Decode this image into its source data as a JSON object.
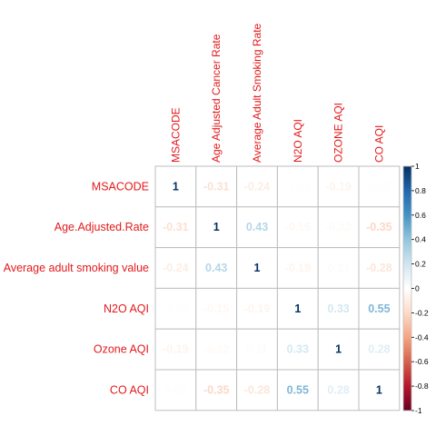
{
  "chart_data": {
    "type": "heatmap",
    "variant": "correlation-matrix",
    "row_labels": [
      "MSACODE",
      "Age.Adjusted.Rate",
      "Average adult smoking value",
      "N2O AQI",
      "Ozone AQI",
      "CO AQI"
    ],
    "col_labels": [
      "MSACODE",
      "Age Adjusted Cancer Rate",
      "Average Adult Smoking Rate",
      "N2O AQI",
      "OZONE AQI",
      "CO AQI"
    ],
    "values": [
      [
        1,
        -0.31,
        -0.24,
        -0.04,
        -0.19,
        0.08
      ],
      [
        -0.31,
        1,
        0.43,
        -0.15,
        -0.12,
        -0.35
      ],
      [
        -0.24,
        0.43,
        1,
        -0.19,
        0.11,
        -0.28
      ],
      [
        -0.04,
        -0.15,
        -0.19,
        1,
        0.33,
        0.55
      ],
      [
        -0.19,
        -0.12,
        0.11,
        0.33,
        1,
        0.28
      ],
      [
        0.08,
        -0.35,
        -0.28,
        0.55,
        0.28,
        1
      ]
    ],
    "value_labels": [
      [
        "1",
        "-0.31",
        "-0.24",
        "-0.04",
        "-0.19",
        "0.08"
      ],
      [
        "-0.31",
        "1",
        "0.43",
        "-0.15",
        "-0.12",
        "-0.35"
      ],
      [
        "-0.24",
        "0.43",
        "1",
        "-0.19",
        "0.11",
        "-0.28"
      ],
      [
        "-0.04",
        "-0.15",
        "-0.19",
        "1",
        "0.33",
        "0.55"
      ],
      [
        "-0.19",
        "-0.12",
        "0.11",
        "0.33",
        "1",
        "0.28"
      ],
      [
        "0.08",
        "-0.35",
        "-0.28",
        "0.55",
        "0.28",
        "1"
      ]
    ],
    "color_scale": {
      "range": [
        -1,
        1
      ],
      "stops": [
        "#67001f",
        "#b2182b",
        "#d6604d",
        "#f4a582",
        "#fddbc7",
        "#ffffff",
        "#d1e5f0",
        "#92c5de",
        "#4393c3",
        "#2166ac",
        "#053061"
      ],
      "ticks": [
        1,
        0.8,
        0.6,
        0.4,
        0.2,
        0,
        -0.2,
        -0.4,
        -0.6,
        -0.8,
        -1
      ],
      "tick_labels": [
        "1",
        "0.8",
        "0.6",
        "0.4",
        "0.2",
        "0",
        "-0.2",
        "-0.4",
        "-0.6",
        "-0.8",
        "-1"
      ],
      "placement": "right"
    },
    "label_color": "#e41a1c",
    "grid_color": "#bebebe"
  }
}
